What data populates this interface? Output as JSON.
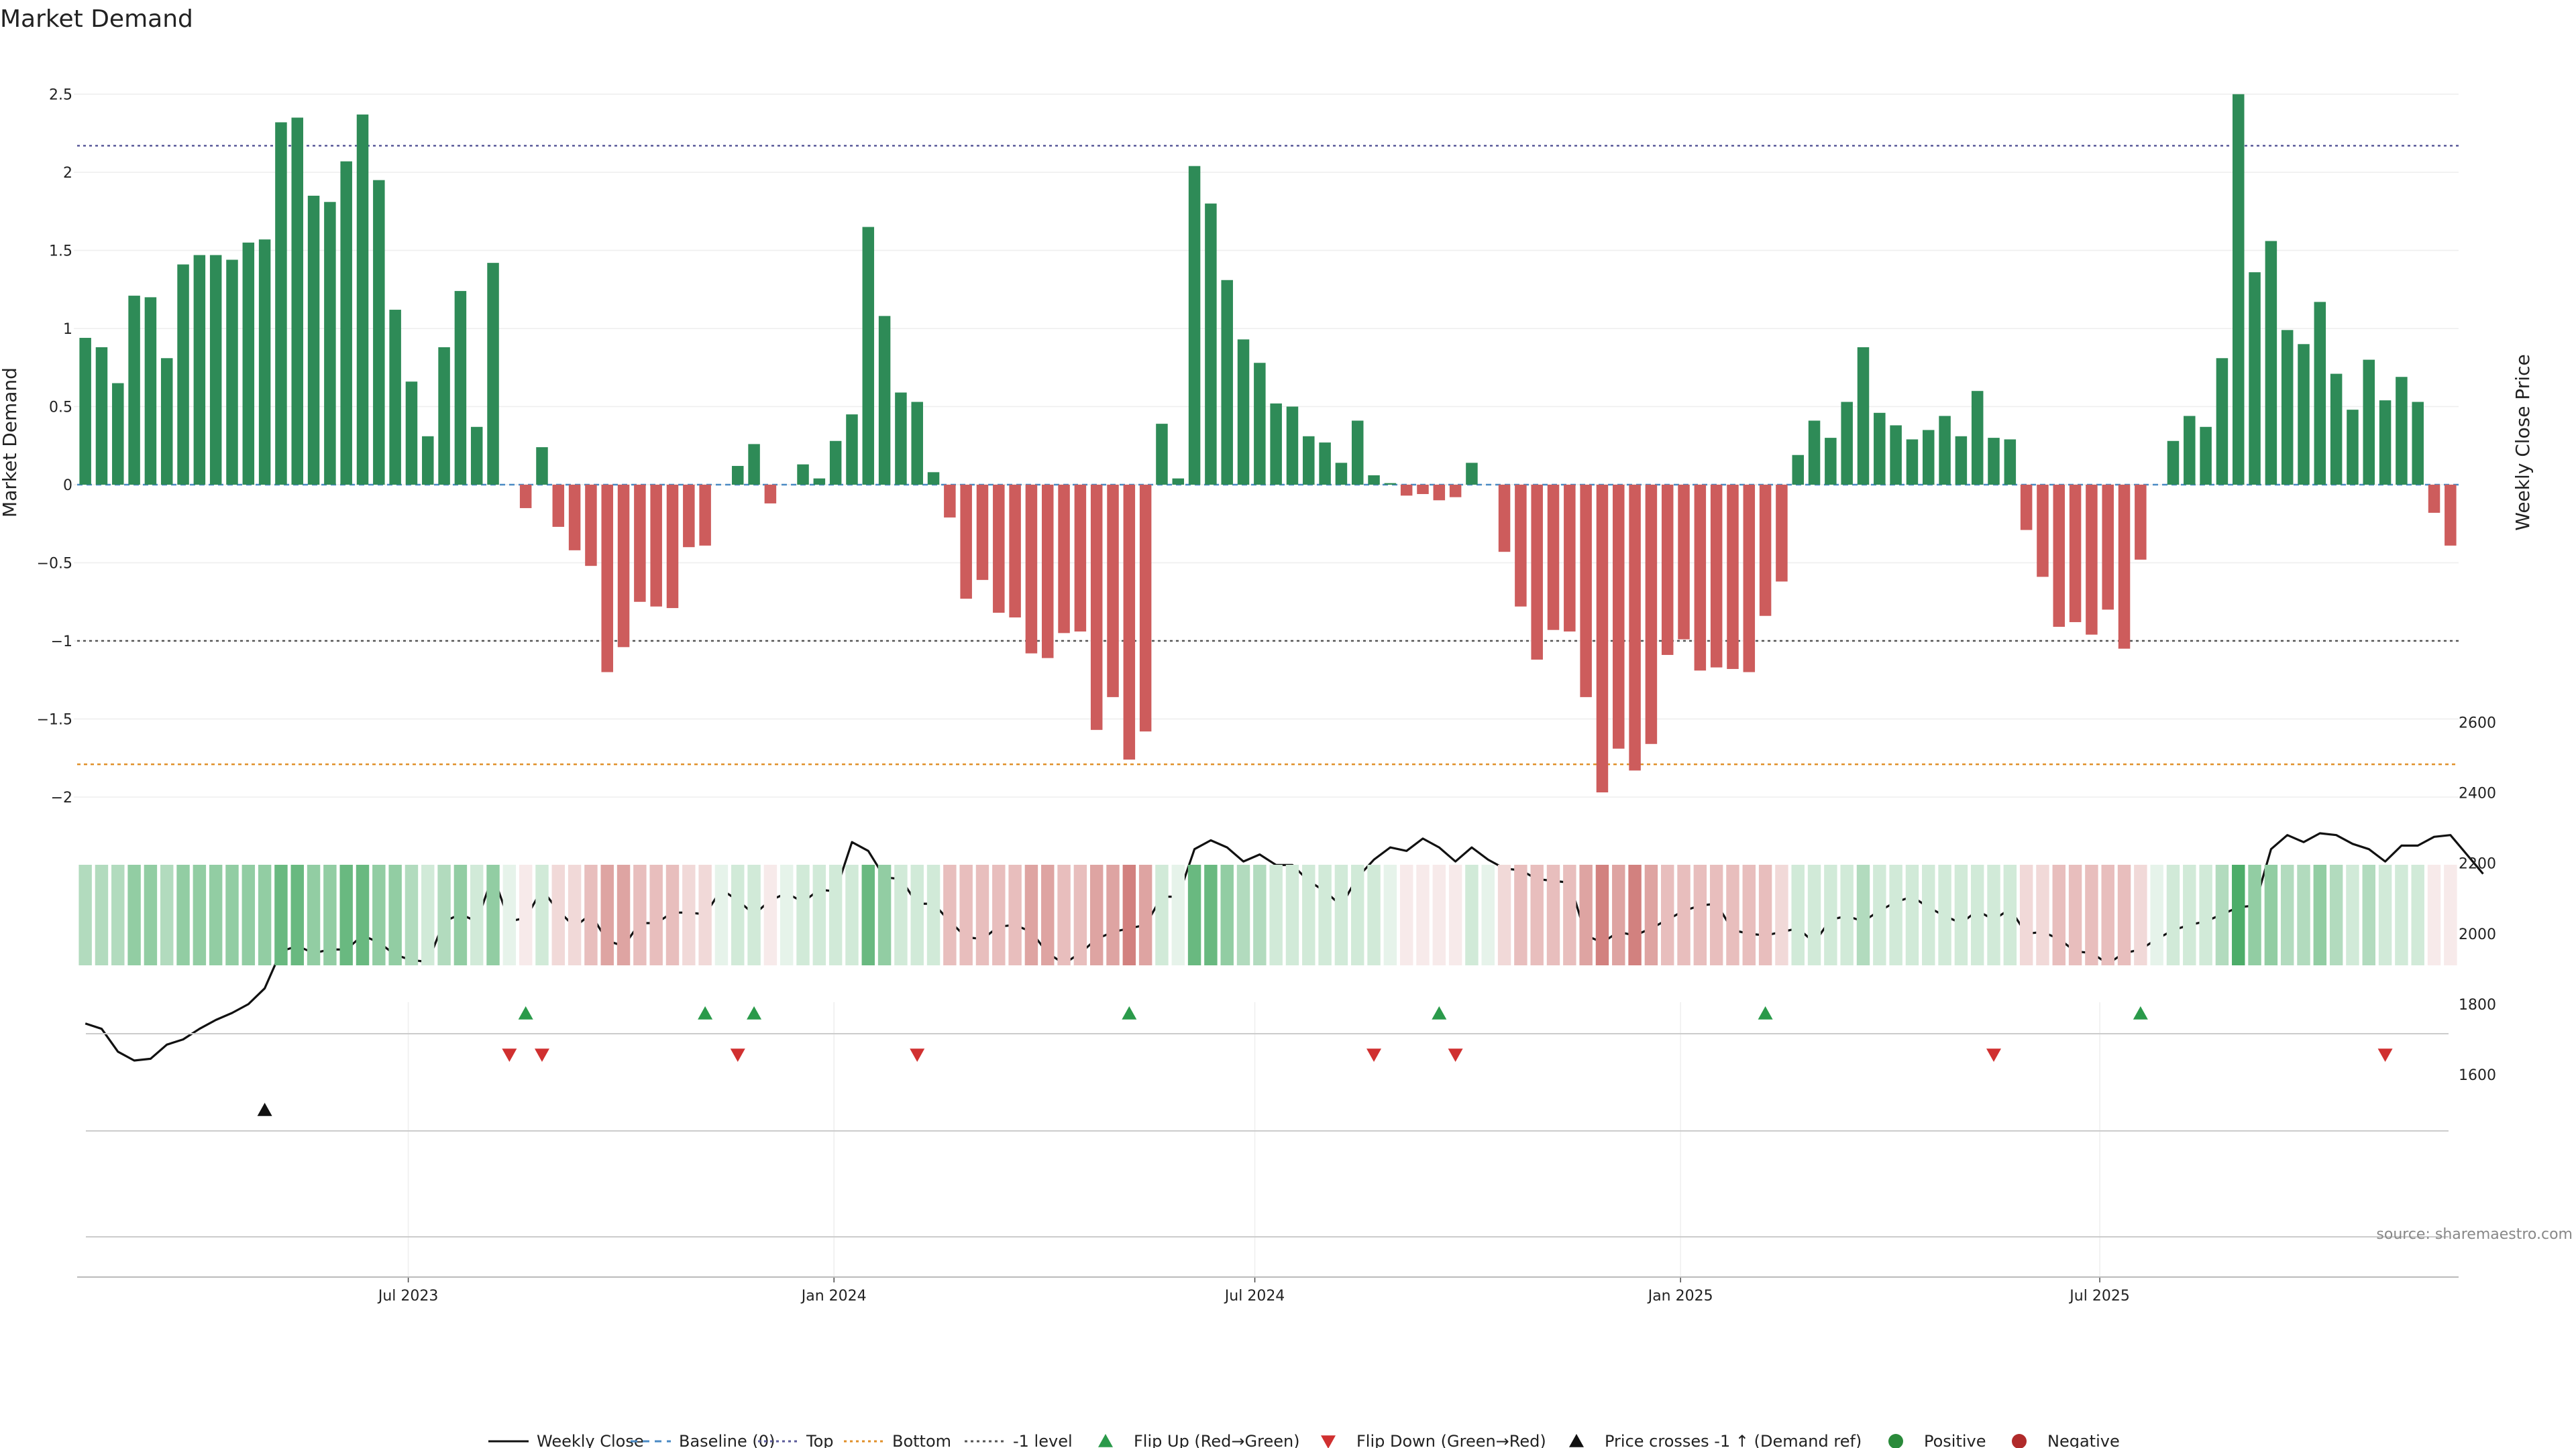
{
  "chart_data": {
    "type": "bar",
    "title": "Market Demand",
    "ylabel": "Market Demand",
    "y2label": "Weekly Close Price",
    "ylim": [
      -2.2,
      2.6
    ],
    "y2lim": [
      1575,
      2705
    ],
    "yticks": [
      -2,
      -1.5,
      -1,
      -0.5,
      0,
      0.5,
      1,
      1.5,
      2,
      2.5
    ],
    "ytick_labels": [
      "−2",
      "−1.5",
      "−1",
      "−0.5",
      "0",
      "0.5",
      "1",
      "1.5",
      "2",
      "2.5"
    ],
    "y2ticks": [
      1600,
      1800,
      2000,
      2200,
      2400,
      2600
    ],
    "y2tick_labels": [
      "1600",
      "1800",
      "2000",
      "2200",
      "2400",
      "2600"
    ],
    "x_start_week_index": 0,
    "xtick_labels": [
      {
        "label": "Jul 2023",
        "week": 19.8
      },
      {
        "label": "Jan 2024",
        "week": 45.9
      },
      {
        "label": "Jul 2024",
        "week": 71.7
      },
      {
        "label": "Jan 2025",
        "week": 97.8
      },
      {
        "label": "Jul 2025",
        "week": 123.5
      }
    ],
    "reference_lines": [
      {
        "name": "Top",
        "value": 2.17,
        "color": "#5a5a9a",
        "dash": "4 5"
      },
      {
        "name": "Bottom",
        "value": -1.79,
        "color": "#e0902a",
        "dash": "5 5"
      },
      {
        "name": "-1 level",
        "value": -1.0,
        "color": "#555555",
        "dash": "4 5"
      },
      {
        "name": "Baseline (0)",
        "value": 0.0,
        "color": "#4a8ac4",
        "dash": "8 6"
      }
    ],
    "demand": [
      0.94,
      0.88,
      0.65,
      1.21,
      1.2,
      0.81,
      1.41,
      1.47,
      1.47,
      1.44,
      1.55,
      1.57,
      2.32,
      2.35,
      1.85,
      1.81,
      2.07,
      2.37,
      1.95,
      1.12,
      0.66,
      0.31,
      0.88,
      1.24,
      0.37,
      1.42,
      0,
      -0.15,
      0.24,
      -0.27,
      -0.42,
      -0.52,
      -1.2,
      -1.04,
      -0.75,
      -0.78,
      -0.79,
      -0.4,
      -0.39,
      0,
      0.12,
      0.26,
      -0.12,
      0,
      0.13,
      0.04,
      0.28,
      0.45,
      1.65,
      1.08,
      0.59,
      0.53,
      0.08,
      -0.21,
      -0.73,
      -0.61,
      -0.82,
      -0.85,
      -1.08,
      -1.11,
      -0.95,
      -0.94,
      -1.57,
      -1.36,
      -1.76,
      -1.58,
      0.39,
      0.04,
      2.04,
      1.8,
      1.31,
      0.93,
      0.78,
      0.52,
      0.5,
      0.31,
      0.27,
      0.14,
      0.41,
      0.06,
      0.01,
      -0.07,
      -0.06,
      -0.1,
      -0.08,
      0.14,
      0,
      -0.43,
      -0.78,
      -1.12,
      -0.93,
      -0.94,
      -1.36,
      -1.97,
      -1.69,
      -1.83,
      -1.66,
      -1.09,
      -0.99,
      -1.19,
      -1.17,
      -1.18,
      -1.2,
      -0.84,
      -0.62,
      0.19,
      0.41,
      0.3,
      0.53,
      0.88,
      0.46,
      0.38,
      0.29,
      0.35,
      0.44,
      0.31,
      0.6,
      0.3,
      0.29,
      -0.29,
      -0.59,
      -0.91,
      -0.88,
      -0.96,
      -0.8,
      -1.05,
      -0.48,
      0,
      0.28,
      0.44,
      0.37,
      0.81,
      2.5,
      1.36,
      1.56,
      0.99,
      0.9,
      1.17,
      0.71,
      0.48,
      0.8,
      0.54,
      0.69,
      0.53,
      -0.18,
      -0.39
    ],
    "weekly_close": [
      1745,
      1730,
      1665,
      1640,
      1645,
      1685,
      1700,
      1730,
      1755,
      1775,
      1800,
      1845,
      1950,
      1965,
      1945,
      1955,
      1955,
      1995,
      1975,
      1940,
      1925,
      1920,
      2035,
      2055,
      2035,
      2165,
      2035,
      2045,
      2125,
      2065,
      2020,
      2055,
      1980,
      1965,
      2030,
      2030,
      2060,
      2060,
      2055,
      2125,
      2095,
      2055,
      2095,
      2115,
      2090,
      2125,
      2120,
      2260,
      2235,
      2160,
      2155,
      2085,
      2085,
      2035,
      1990,
      1985,
      2020,
      2025,
      2005,
      1945,
      1915,
      1945,
      1985,
      2005,
      2015,
      2025,
      2105,
      2105,
      2240,
      2265,
      2245,
      2205,
      2225,
      2195,
      2195,
      2150,
      2120,
      2080,
      2160,
      2210,
      2245,
      2235,
      2270,
      2245,
      2205,
      2245,
      2210,
      2185,
      2180,
      2155,
      2150,
      2145,
      1995,
      1975,
      2005,
      1995,
      2015,
      2040,
      2065,
      2080,
      2085,
      2010,
      2000,
      1995,
      2005,
      2015,
      1975,
      2040,
      2050,
      2035,
      2065,
      2090,
      2105,
      2075,
      2050,
      2030,
      2065,
      2040,
      2070,
      2000,
      2005,
      1985,
      1950,
      1945,
      1915,
      1945,
      1955,
      1985,
      2010,
      2025,
      2035,
      2055,
      2075,
      2080,
      2240,
      2280,
      2260,
      2285,
      2280,
      2255,
      2240,
      2205,
      2250,
      2250,
      2275,
      2280,
      2225,
      2170
    ],
    "intensity_strip": [
      0.37,
      0.37,
      0.37,
      0.52,
      0.52,
      0.37,
      0.52,
      0.52,
      0.52,
      0.52,
      0.52,
      0.52,
      0.72,
      0.72,
      0.52,
      0.52,
      0.72,
      0.72,
      0.52,
      0.52,
      0.37,
      0.22,
      0.37,
      0.52,
      0.22,
      0.52,
      0.12,
      0.12,
      0.22,
      0.22,
      0.22,
      0.37,
      0.52,
      0.52,
      0.37,
      0.37,
      0.37,
      0.22,
      0.22,
      0.12,
      0.22,
      0.22,
      0.12,
      0.12,
      0.22,
      0.22,
      0.22,
      0.22,
      0.72,
      0.52,
      0.22,
      0.22,
      0.22,
      0.37,
      0.37,
      0.37,
      0.37,
      0.37,
      0.52,
      0.52,
      0.37,
      0.37,
      0.52,
      0.52,
      0.72,
      0.52,
      0.22,
      0.12,
      0.72,
      0.72,
      0.52,
      0.37,
      0.37,
      0.22,
      0.22,
      0.22,
      0.22,
      0.22,
      0.22,
      0.22,
      0.12,
      0.12,
      0.12,
      0.12,
      0.12,
      0.22,
      0.12,
      0.22,
      0.37,
      0.37,
      0.37,
      0.37,
      0.52,
      0.72,
      0.52,
      0.72,
      0.52,
      0.37,
      0.37,
      0.37,
      0.37,
      0.37,
      0.37,
      0.37,
      0.22,
      0.22,
      0.22,
      0.22,
      0.22,
      0.37,
      0.22,
      0.22,
      0.22,
      0.22,
      0.22,
      0.22,
      0.22,
      0.22,
      0.22,
      0.22,
      0.22,
      0.37,
      0.37,
      0.37,
      0.37,
      0.37,
      0.22,
      0.12,
      0.22,
      0.22,
      0.22,
      0.37,
      0.85,
      0.52,
      0.52,
      0.37,
      0.37,
      0.52,
      0.37,
      0.22,
      0.37,
      0.22,
      0.22,
      0.22,
      0.12,
      0.12
    ],
    "flip_up_weeks": [
      27,
      38,
      41,
      64,
      83,
      103,
      126
    ],
    "flip_down_weeks": [
      26,
      28,
      40,
      51,
      79,
      84,
      117,
      141
    ],
    "price_cross_weeks": [
      11
    ],
    "legend": [
      {
        "label": "Weekly Close",
        "kind": "line",
        "color": "#111111"
      },
      {
        "label": "Baseline (0)",
        "kind": "dash",
        "color": "#4a8ac4"
      },
      {
        "label": "Top",
        "kind": "dot",
        "color": "#5a5a9a"
      },
      {
        "label": "Bottom",
        "kind": "dot",
        "color": "#e0902a"
      },
      {
        "label": "-1 level",
        "kind": "dot",
        "color": "#555555"
      },
      {
        "label": "Flip Up (Red→Green)",
        "kind": "tri-up",
        "color": "#2a9a4a"
      },
      {
        "label": "Flip Down (Green→Red)",
        "kind": "tri-down",
        "color": "#d03030"
      },
      {
        "label": "Price crosses -1 ↑ (Demand ref)",
        "kind": "tri-up",
        "color": "#111111"
      },
      {
        "label": "Positive",
        "kind": "circle",
        "color": "#2a8a3a"
      },
      {
        "label": "Negative",
        "kind": "circle",
        "color": "#b02a2a"
      }
    ],
    "colors": {
      "positive_bar": "#2e8b57",
      "negative_bar": "#cd5c5c",
      "strip_positive": "#2e9e4e",
      "strip_negative": "#c0504d"
    },
    "source": "source: sharemaestro.com"
  }
}
